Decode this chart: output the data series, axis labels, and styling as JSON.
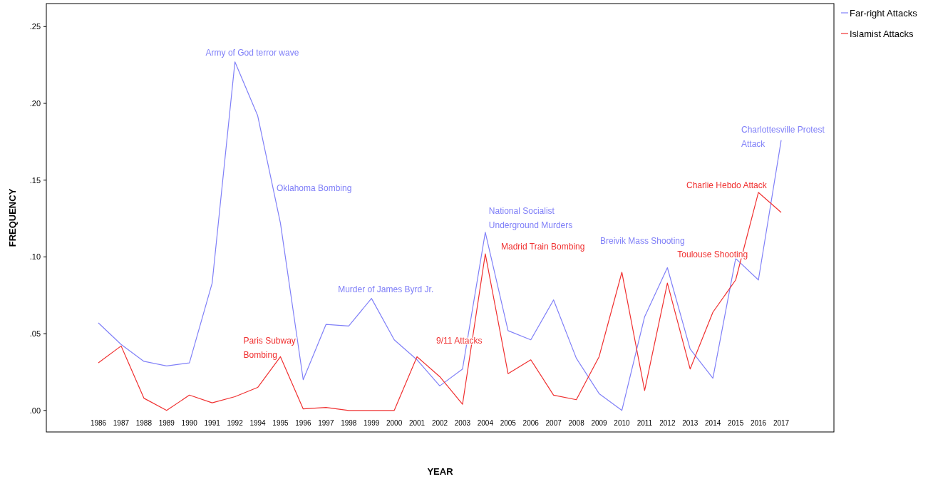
{
  "chart_data": {
    "type": "line",
    "xlabel": "YEAR",
    "ylabel": "FREQUENCY",
    "categories": [
      "1986",
      "1987",
      "1988",
      "1989",
      "1990",
      "1991",
      "1992",
      "1994",
      "1995",
      "1996",
      "1997",
      "1998",
      "1999",
      "2000",
      "2001",
      "2002",
      "2003",
      "2004",
      "2005",
      "2006",
      "2007",
      "2008",
      "2009",
      "2010",
      "2011",
      "2012",
      "2013",
      "2014",
      "2015",
      "2016",
      "2017"
    ],
    "series": [
      {
        "name": "Far-right Attacks",
        "color": "#8080f8",
        "values": [
          0.057,
          0.043,
          0.032,
          0.029,
          0.031,
          0.083,
          0.227,
          0.192,
          0.122,
          0.02,
          0.056,
          0.055,
          0.073,
          0.046,
          0.033,
          0.016,
          0.027,
          0.116,
          0.052,
          0.046,
          0.072,
          0.034,
          0.011,
          0.0,
          0.061,
          0.093,
          0.04,
          0.021,
          0.099,
          0.085,
          0.176
        ]
      },
      {
        "name": "Islamist Attacks",
        "color": "#f03030",
        "values": [
          0.031,
          0.042,
          0.008,
          0.0,
          0.01,
          0.005,
          0.009,
          0.015,
          0.035,
          0.001,
          0.002,
          0.0,
          0.0,
          0.0,
          0.035,
          0.022,
          0.004,
          0.102,
          0.024,
          0.033,
          0.01,
          0.007,
          0.035,
          0.09,
          0.013,
          0.083,
          0.027,
          0.064,
          0.085,
          0.142,
          0.129
        ]
      }
    ],
    "ylim": [
      -0.014,
      0.265
    ],
    "yticks": [
      {
        "value": 0,
        "label": ".00"
      },
      {
        "value": 0.05,
        "label": ".05"
      },
      {
        "value": 0.1,
        "label": ".10"
      },
      {
        "value": 0.15,
        "label": ".15"
      },
      {
        "value": 0.2,
        "label": ".20"
      },
      {
        "value": 0.25,
        "label": ".25"
      }
    ],
    "grid": false,
    "legend": "top right",
    "marker": "none",
    "line_style": "solid",
    "annotations": [
      {
        "text": "Army of God terror wave",
        "x": "1992",
        "y": 0.227
      },
      "Oklahoma Bombing",
      {
        "text": "Murder of James Byrd Jr.",
        "x": "1999",
        "y": 0.073
      },
      {
        "text": "Paris Subway\nBombing",
        "x": "1995",
        "y": 0.035
      },
      {
        "text": "9/11 Attacks",
        "x": "2001",
        "y": 0.035
      },
      {
        "text": "National Socialist\nUnderground Murders",
        "x": "2004",
        "y": 0.116
      },
      "Madrid Train Bombing",
      "Breivik Mass Shooting",
      {
        "text": "Toulouse Shooting",
        "x": "2012",
        "y": 0.083
      },
      "Charlie Hebdo Attack",
      {
        "text": "Charlottesville Protest\nAttack",
        "x": "2017",
        "y": 0.176
      }
    ]
  }
}
